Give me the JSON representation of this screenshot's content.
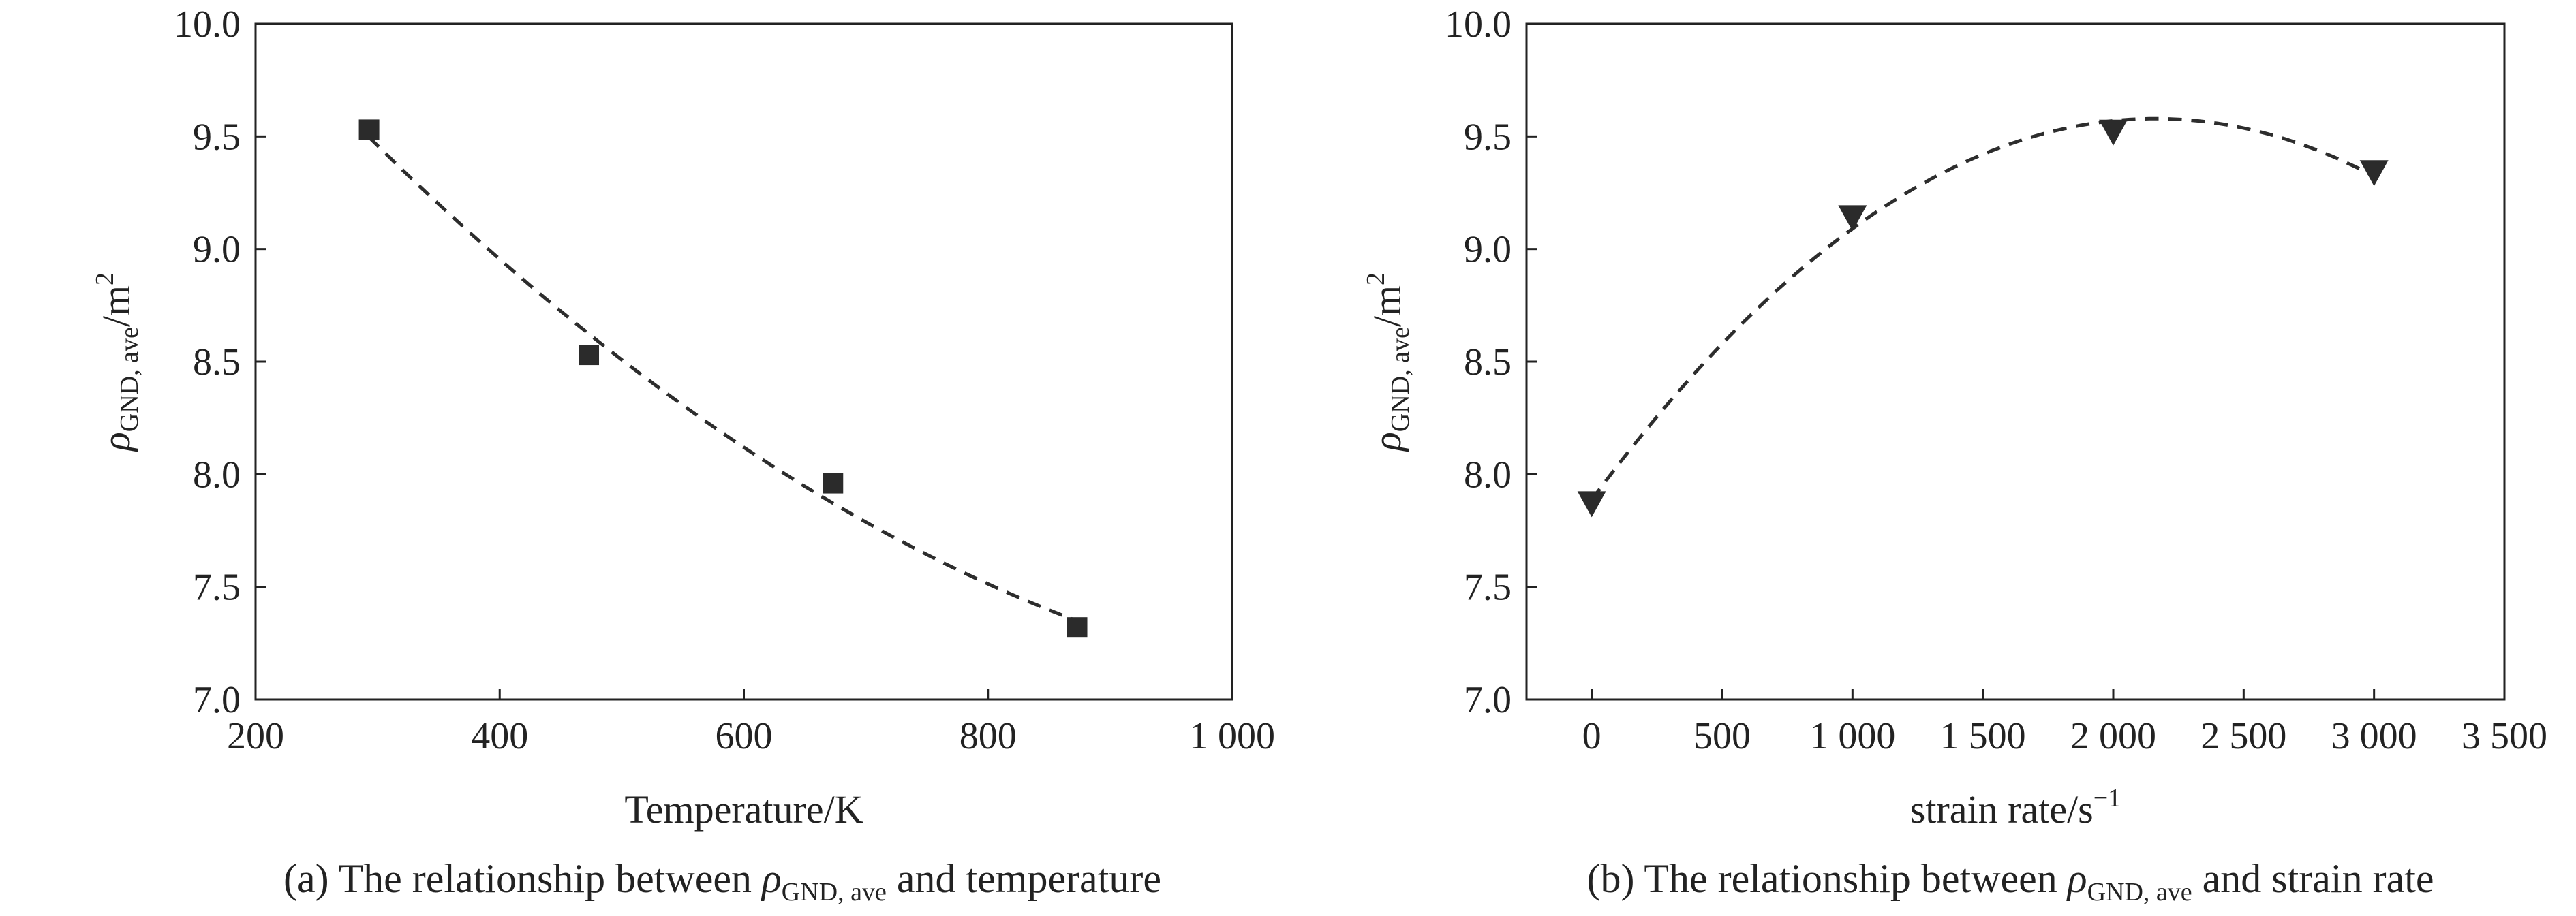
{
  "chart_data": [
    {
      "type": "scatter",
      "panel": "a",
      "caption_prefix": "(a) The relationship between ",
      "caption_symbol": "ρ",
      "caption_subscript": "GND, ave",
      "caption_suffix": " and temperature",
      "xlabel": "Temperature/K",
      "ylabel_symbol": "ρ",
      "ylabel_subscript": "GND, ave",
      "ylabel_unit": "/m",
      "ylabel_sup": "2",
      "xlim": [
        200,
        1000
      ],
      "ylim": [
        7.0,
        10.0
      ],
      "xticks": [
        200,
        400,
        600,
        800,
        1000
      ],
      "xtick_labels": [
        "200",
        "400",
        "600",
        "800",
        "1 000"
      ],
      "yticks": [
        7.0,
        7.5,
        8.0,
        8.5,
        9.0,
        9.5,
        10.0
      ],
      "ytick_labels": [
        "7.0",
        "7.5",
        "8.0",
        "8.5",
        "9.0",
        "9.5",
        "10.0"
      ],
      "marker": "square",
      "fit": "dashed",
      "grid": false,
      "series": [
        {
          "x": [
            293,
            473,
            673,
            873
          ],
          "y": [
            9.53,
            8.53,
            7.96,
            7.32
          ]
        }
      ]
    },
    {
      "type": "scatter",
      "panel": "b",
      "caption_prefix": "(b) The relationship between ",
      "caption_symbol": "ρ",
      "caption_subscript": "GND, ave",
      "caption_suffix": " and strain rate",
      "xlabel": "strain rate/s",
      "xlabel_sup": "−1",
      "ylabel_symbol": "ρ",
      "ylabel_subscript": "GND, ave",
      "ylabel_unit": "/m",
      "ylabel_sup": "2",
      "xlim": [
        -250,
        3500
      ],
      "ylim": [
        7.0,
        10.0
      ],
      "xticks": [
        0,
        500,
        1000,
        1500,
        2000,
        2500,
        3000,
        3500
      ],
      "xtick_labels": [
        "0",
        "500",
        "1 000",
        "1 500",
        "2 000",
        "2 500",
        "3 000",
        "3 500"
      ],
      "yticks": [
        7.0,
        7.5,
        8.0,
        8.5,
        9.0,
        9.5,
        10.0
      ],
      "ytick_labels": [
        "7.0",
        "7.5",
        "8.0",
        "8.5",
        "9.0",
        "9.5",
        "10.0"
      ],
      "marker": "triangle-down",
      "fit": "dashed",
      "grid": false,
      "series": [
        {
          "x": [
            0,
            1000,
            2000,
            3000
          ],
          "y": [
            7.87,
            9.14,
            9.52,
            9.34
          ]
        }
      ]
    }
  ]
}
